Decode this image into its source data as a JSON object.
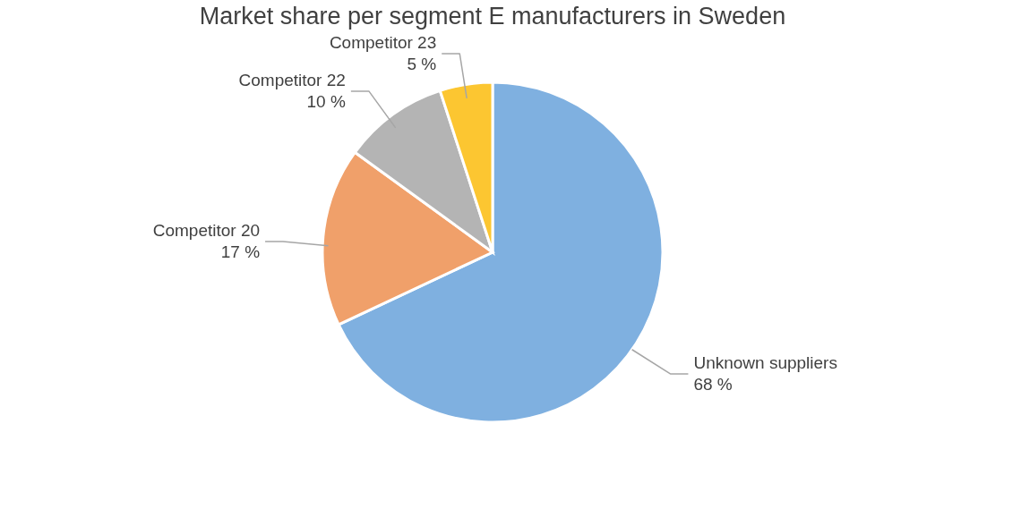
{
  "chart_data": {
    "type": "pie",
    "title": "Market share per segment E manufacturers in Sweden",
    "categories": [
      "Unknown suppliers",
      "Competitor 20",
      "Competitor 22",
      "Competitor 23"
    ],
    "values": [
      68,
      17,
      10,
      5
    ],
    "colors": [
      "#7fb0e0",
      "#f0a06a",
      "#b4b4b4",
      "#fcc631"
    ],
    "value_labels": [
      "68 %",
      "17 %",
      "10 %",
      "5 %"
    ],
    "legend": false
  }
}
